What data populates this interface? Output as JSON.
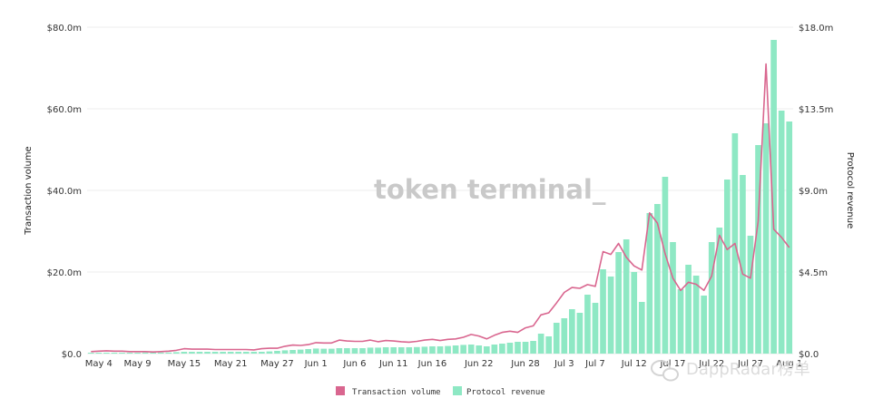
{
  "chart_data": {
    "type": "bar",
    "title": "",
    "xlabel": "",
    "ylabel_left": "Transaction volume",
    "ylabel_right": "Protocol revenue",
    "grid": true,
    "legend_position": "bottom-center",
    "y_left": {
      "min": 0,
      "max": 80,
      "unit": "$m",
      "ticks": [
        "$0.0",
        "$20.0m",
        "$40.0m",
        "$60.0m",
        "$80.0m"
      ]
    },
    "y_right": {
      "min": 0,
      "max": 18,
      "unit": "$m",
      "ticks": [
        "$0.0",
        "$4.5m",
        "$9.0m",
        "$13.5m",
        "$18.0m"
      ]
    },
    "x_tick_labels": [
      "May 4",
      "May 9",
      "May 15",
      "May 21",
      "May 27",
      "Jun 1",
      "Jun 6",
      "Jun 11",
      "Jun 16",
      "Jun 22",
      "Jun 28",
      "Jul 3",
      "Jul 7",
      "Jul 12",
      "Jul 17",
      "Jul 22",
      "Jul 27",
      "Aug 1"
    ],
    "x_tick_indices": [
      1,
      6,
      12,
      18,
      24,
      29,
      34,
      39,
      44,
      50,
      56,
      61,
      65,
      70,
      75,
      80,
      85,
      90
    ],
    "x_start_day_index": 0,
    "series": [
      {
        "name": "Transaction volume",
        "type": "line",
        "axis": "left",
        "color": "#d9668f",
        "values": [
          0.5,
          0.6,
          0.7,
          0.6,
          0.6,
          0.5,
          0.5,
          0.5,
          0.4,
          0.5,
          0.6,
          0.8,
          1.2,
          1.1,
          1.1,
          1.1,
          1.0,
          1.0,
          1.0,
          1.0,
          1.0,
          0.9,
          1.2,
          1.3,
          1.3,
          1.8,
          2.1,
          2.0,
          2.2,
          2.7,
          2.6,
          2.6,
          3.3,
          3.1,
          3.0,
          3.0,
          3.3,
          2.9,
          3.2,
          3.1,
          2.9,
          2.8,
          3.0,
          3.3,
          3.5,
          3.2,
          3.5,
          3.6,
          4.0,
          4.7,
          4.3,
          3.6,
          4.5,
          5.2,
          5.5,
          5.2,
          6.3,
          6.8,
          9.5,
          10.0,
          12.4,
          15.0,
          16.2,
          16.0,
          16.9,
          16.5,
          25.0,
          24.3,
          27.0,
          23.6,
          21.5,
          20.5,
          34.5,
          32.0,
          24.5,
          18.5,
          15.5,
          17.5,
          17.0,
          15.5,
          19.0,
          29.0,
          25.5,
          27.0,
          19.5,
          18.5,
          32.5,
          71.0,
          30.5,
          28.5,
          26.0
        ]
      },
      {
        "name": "Protocol revenue",
        "type": "bar",
        "axis": "right",
        "color": "#8ee8c4",
        "values": [
          0.05,
          0.05,
          0.05,
          0.05,
          0.05,
          0.05,
          0.05,
          0.06,
          0.06,
          0.06,
          0.06,
          0.08,
          0.1,
          0.1,
          0.1,
          0.1,
          0.1,
          0.1,
          0.1,
          0.1,
          0.1,
          0.1,
          0.1,
          0.12,
          0.15,
          0.18,
          0.2,
          0.22,
          0.25,
          0.28,
          0.27,
          0.27,
          0.3,
          0.3,
          0.3,
          0.3,
          0.33,
          0.33,
          0.35,
          0.35,
          0.35,
          0.35,
          0.36,
          0.38,
          0.4,
          0.4,
          0.42,
          0.45,
          0.48,
          0.5,
          0.45,
          0.4,
          0.5,
          0.55,
          0.6,
          0.65,
          0.65,
          0.7,
          1.1,
          0.95,
          1.7,
          1.95,
          2.45,
          2.25,
          3.25,
          2.8,
          4.65,
          4.25,
          5.6,
          6.3,
          4.5,
          2.85,
          7.75,
          8.25,
          9.75,
          6.15,
          3.55,
          4.9,
          4.3,
          3.2,
          6.15,
          6.95,
          9.6,
          12.15,
          9.85,
          6.5,
          11.5,
          12.7,
          17.3,
          13.4,
          12.8
        ]
      }
    ]
  },
  "legend": [
    {
      "label": "Transaction volume",
      "color": "#d9668f"
    },
    {
      "label": "Protocol revenue",
      "color": "#8ee8c4"
    }
  ],
  "watermark": "token terminal_",
  "source_mark": "DappRadar榜单"
}
